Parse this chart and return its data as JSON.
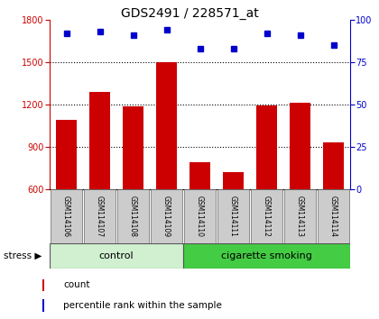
{
  "title": "GDS2491 / 228571_at",
  "samples": [
    "GSM114106",
    "GSM114107",
    "GSM114108",
    "GSM114109",
    "GSM114110",
    "GSM114111",
    "GSM114112",
    "GSM114113",
    "GSM114114"
  ],
  "counts": [
    1090,
    1290,
    1185,
    1500,
    790,
    720,
    1195,
    1215,
    930
  ],
  "percentiles": [
    92,
    93,
    91,
    94,
    83,
    83,
    92,
    91,
    85
  ],
  "group_colors": {
    "control": "#d0f0d0",
    "cigarette smoking": "#44cc44"
  },
  "bar_color": "#cc0000",
  "dot_color": "#0000cc",
  "ylim_left": [
    600,
    1800
  ],
  "ylim_right": [
    0,
    100
  ],
  "yticks_left": [
    600,
    900,
    1200,
    1500,
    1800
  ],
  "yticks_right": [
    0,
    25,
    50,
    75,
    100
  ],
  "grid_ticks": [
    900,
    1200,
    1500
  ],
  "legend_count_label": "count",
  "legend_pct_label": "percentile rank within the sample",
  "stress_label": "stress ▶",
  "group_label_control": "control",
  "group_label_smoking": "cigarette smoking",
  "title_fontsize": 10,
  "axis_color_left": "#cc0000",
  "axis_color_right": "#0000cc",
  "n_control": 4,
  "n_total": 9
}
